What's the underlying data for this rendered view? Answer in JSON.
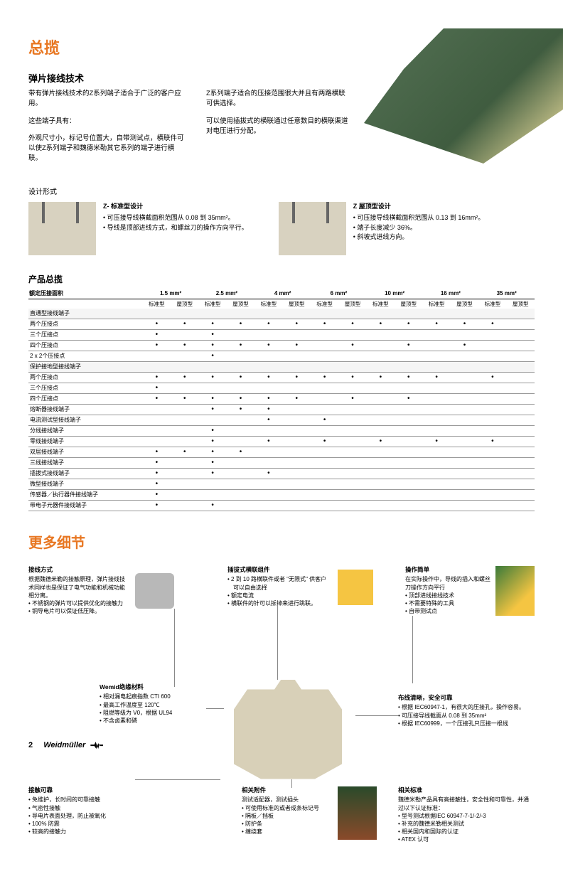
{
  "title_main": "总揽",
  "sub_title": "弹片接线技术",
  "intro_left_p1": "带有弹片接线技术的Z系列端子适合于广泛的客户应用。",
  "intro_left_p2": "这些端子具有：",
  "intro_left_p3": "外观尺寸小，标记号位置大，自带测试点，横联件可以使Z系列端子和魏德米勒其它系列的端子进行横联。",
  "intro_right_p1": "Z系列端子适合的压接范围很大并且有两路横联可供选择。",
  "intro_right_p2": "可以使用插拔式的横联通过任意数目的横联渠道对电压进行分配。",
  "design_label": "设计形式",
  "design_a": {
    "title": "Z- 标准型设计",
    "items": [
      "可压接导线横截面积范围从 0.08 到 35mm²。",
      "导线是顶部进线方式，和螺丝刀的操作方向平行。"
    ]
  },
  "design_b": {
    "title": "Z 屋顶型设计",
    "items": [
      "可压接导线横截面积范围从 0.13 到 16mm²。",
      "端子长度减少 36%。",
      "斜坡式进线方向。"
    ]
  },
  "table_title": "产品总揽",
  "table_header_left": "额定压接面积",
  "sizes": [
    "1.5 mm²",
    "2.5 mm²",
    "4 mm²",
    "6 mm²",
    "10 mm²",
    "16 mm²",
    "35 mm²"
  ],
  "subcols": [
    "标准型",
    "屋顶型"
  ],
  "rows": [
    {
      "section": "直通型接线端子"
    },
    {
      "label": "两个压接点",
      "dots": [
        1,
        1,
        1,
        1,
        1,
        1,
        1,
        1,
        1,
        1,
        1,
        1,
        1,
        0
      ]
    },
    {
      "label": "三个压接点",
      "dots": [
        1,
        0,
        1,
        0,
        0,
        0,
        0,
        0,
        0,
        0,
        0,
        0,
        0,
        0
      ]
    },
    {
      "label": "四个压接点",
      "dots": [
        1,
        1,
        1,
        1,
        1,
        1,
        0,
        1,
        0,
        1,
        0,
        1,
        0,
        0
      ]
    },
    {
      "label": "2 x 2个压接点",
      "dots": [
        0,
        0,
        1,
        0,
        0,
        0,
        0,
        0,
        0,
        0,
        0,
        0,
        0,
        0
      ]
    },
    {
      "section": "保护接地型接线端子"
    },
    {
      "label": "两个压接点",
      "dots": [
        1,
        1,
        1,
        1,
        1,
        1,
        1,
        1,
        1,
        1,
        1,
        0,
        1,
        0
      ]
    },
    {
      "label": "三个压接点",
      "dots": [
        1,
        0,
        0,
        0,
        0,
        0,
        0,
        0,
        0,
        0,
        0,
        0,
        0,
        0
      ]
    },
    {
      "label": "四个压接点",
      "dots": [
        1,
        1,
        1,
        1,
        1,
        1,
        0,
        1,
        0,
        1,
        0,
        0,
        0,
        0
      ]
    },
    {
      "label": "熔断器接线端子",
      "dots": [
        0,
        0,
        1,
        1,
        1,
        0,
        0,
        0,
        0,
        0,
        0,
        0,
        0,
        0
      ]
    },
    {
      "label": "电流测试型接线端子",
      "dots": [
        0,
        0,
        0,
        0,
        1,
        0,
        1,
        0,
        0,
        0,
        0,
        0,
        0,
        0
      ]
    },
    {
      "label": "分线接线端子",
      "dots": [
        0,
        0,
        1,
        0,
        0,
        0,
        0,
        0,
        0,
        0,
        0,
        0,
        0,
        0
      ]
    },
    {
      "label": "零线接线端子",
      "dots": [
        0,
        0,
        1,
        0,
        1,
        0,
        1,
        0,
        1,
        0,
        1,
        0,
        1,
        0
      ]
    },
    {
      "label": "双层接线端子",
      "dots": [
        1,
        1,
        1,
        1,
        0,
        0,
        0,
        0,
        0,
        0,
        0,
        0,
        0,
        0
      ]
    },
    {
      "label": "三线接线端子",
      "dots": [
        1,
        0,
        1,
        0,
        0,
        0,
        0,
        0,
        0,
        0,
        0,
        0,
        0,
        0
      ]
    },
    {
      "label": "插拔式接线端子",
      "dots": [
        1,
        0,
        1,
        0,
        1,
        0,
        0,
        0,
        0,
        0,
        0,
        0,
        0,
        0
      ]
    },
    {
      "label": "微型接线端子",
      "dots": [
        1,
        0,
        0,
        0,
        0,
        0,
        0,
        0,
        0,
        0,
        0,
        0,
        0,
        0
      ]
    },
    {
      "label": "传感器／执行器件接线端子",
      "dots": [
        1,
        0,
        0,
        0,
        0,
        0,
        0,
        0,
        0,
        0,
        0,
        0,
        0,
        0
      ]
    },
    {
      "label": "带电子元器件接线端子",
      "dots": [
        1,
        0,
        1,
        0,
        0,
        0,
        0,
        0,
        0,
        0,
        0,
        0,
        0,
        0
      ]
    }
  ],
  "details_title": "更多细节",
  "callouts": {
    "c1": {
      "title": "接线方式",
      "desc": "根据魏德米勒的接触原理，弹片接线技术同样也是保证了电气功能和机械功能相分离。",
      "items": [
        "不锈钢的弹片可以提供优化的接触力",
        "铜导电片可以保证低压降。"
      ]
    },
    "c2": {
      "title": "插拔式横联组件",
      "items": [
        "2 到 10 路横联件或者 \"无限式\" 供客户可以自由选择",
        "额定电流",
        "横联件的针可以拆掉来进行跳联。"
      ]
    },
    "c3": {
      "title": "操作简单",
      "desc": "在实际操作中，导线的插入和螺丝刀操作方向平行",
      "items": [
        "顶部进线接线技术",
        "不需要特殊的工具",
        "自带测试点"
      ]
    },
    "c4": {
      "title": "Wemid绝缘材料",
      "items": [
        "相对漏电起痕指数 CTI 600",
        "最高工作温度至 120℃",
        "阻燃等级为 V0，根据 UL94",
        "不含卤素和磷"
      ]
    },
    "c5": {
      "title": "布线清晰，安全可靠",
      "items": [
        "根据 IEC60947-1，有很大的压接孔，操作容易。",
        "可压接导线截面从 0.08 到 35mm²",
        "根据 IEC60999，一个压接孔只压接一根线"
      ]
    },
    "c6": {
      "title": "接触可靠",
      "items": [
        "免维护，长时间的可靠接触",
        "气密性接触",
        "导电片表面处理，防止被氧化",
        "100% 防震",
        "较高的接触力"
      ]
    },
    "c7": {
      "title": "相关附件",
      "desc": "测试适配器，测试插头",
      "items": [
        "可使用标准的或者成条标记号",
        "隔板／挡板",
        "防护条",
        "缠绕套"
      ]
    },
    "c8": {
      "title": "相关标准",
      "desc": "魏德米勒产品具有高接触性，安全性和可靠性，并通过以下认证标准：",
      "items": [
        "型号测试根据IEC 60947-7-1/-2/-3",
        "补充的魏德米勒相关测试",
        "相关国内和国际的认证",
        "ATEX 认可"
      ]
    }
  },
  "footer": {
    "page": "2",
    "brand": "Weidmüller"
  }
}
